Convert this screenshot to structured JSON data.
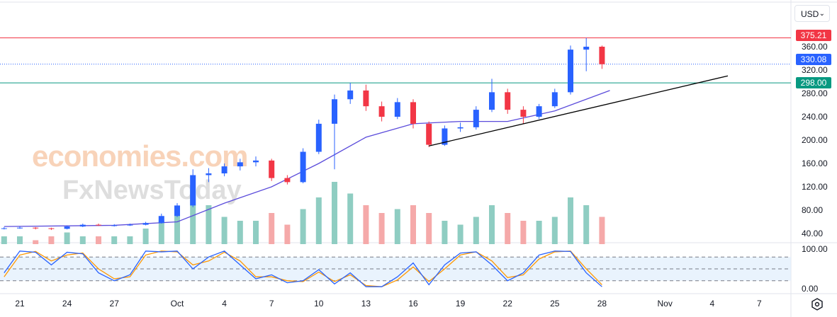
{
  "currency_selector": "USD",
  "watermark": {
    "line1": "economies.com",
    "line2": "FxNewsToday"
  },
  "chart_data": {
    "type": "candlestick",
    "price_axis": {
      "ticks": [
        360,
        320,
        280,
        240,
        200,
        160,
        120,
        80,
        40
      ],
      "tick_labels": [
        "360.00",
        "320.00",
        "280.00",
        "240.00",
        "200.00",
        "160.00",
        "120.00",
        "80.00",
        "40.00"
      ],
      "range": [
        30,
        385
      ]
    },
    "x_axis": {
      "tick_labels": [
        "21",
        "24",
        "27",
        "Oct",
        "4",
        "7",
        "10",
        "13",
        "16",
        "19",
        "22",
        "25",
        "28",
        "Nov",
        "4",
        "7"
      ],
      "tick_days": [
        -10,
        -7,
        -4,
        0,
        3,
        6,
        9,
        12,
        15,
        18,
        21,
        24,
        27,
        31,
        34,
        37
      ]
    },
    "candles": [
      [
        "Sep 20",
        48,
        51,
        47,
        49
      ],
      [
        "Sep 21",
        49,
        52,
        48,
        50
      ],
      [
        "Sep 22",
        50,
        51,
        47,
        49
      ],
      [
        "Sep 23",
        49,
        50,
        46,
        48
      ],
      [
        "Sep 24",
        48,
        54,
        47,
        52
      ],
      [
        "Sep 25",
        52,
        57,
        51,
        55
      ],
      [
        "Sep 26",
        55,
        57,
        53,
        54
      ],
      [
        "Sep 27",
        54,
        56,
        52,
        54
      ],
      [
        "Sep 28",
        54,
        57,
        53,
        55
      ],
      [
        "Sep 29",
        55,
        60,
        54,
        58
      ],
      [
        "Sep 30",
        58,
        74,
        57,
        70
      ],
      [
        "Oct 1",
        70,
        92,
        68,
        88
      ],
      [
        "Oct 2",
        88,
        150,
        85,
        140
      ],
      [
        "Oct 3",
        140,
        152,
        128,
        143
      ],
      [
        "Oct 4",
        143,
        160,
        138,
        155
      ],
      [
        "Oct 5",
        155,
        168,
        148,
        162
      ],
      [
        "Oct 6",
        162,
        172,
        155,
        165
      ],
      [
        "Oct 7",
        165,
        168,
        130,
        135
      ],
      [
        "Oct 8",
        135,
        140,
        124,
        128
      ],
      [
        "Oct 9",
        128,
        186,
        126,
        180
      ],
      [
        "Oct 10",
        180,
        235,
        176,
        228
      ],
      [
        "Oct 11",
        228,
        278,
        150,
        270
      ],
      [
        "Oct 12",
        270,
        298,
        262,
        285
      ],
      [
        "Oct 13",
        285,
        295,
        250,
        258
      ],
      [
        "Oct 14",
        258,
        266,
        232,
        240
      ],
      [
        "Oct 15",
        240,
        272,
        236,
        265
      ],
      [
        "Oct 16",
        265,
        270,
        220,
        228
      ],
      [
        "Oct 17",
        228,
        232,
        188,
        192
      ],
      [
        "Oct 18",
        192,
        225,
        190,
        220
      ],
      [
        "Oct 19",
        220,
        230,
        214,
        222
      ],
      [
        "Oct 20",
        222,
        258,
        218,
        252
      ],
      [
        "Oct 21",
        252,
        305,
        248,
        282
      ],
      [
        "Oct 22",
        282,
        288,
        245,
        252
      ],
      [
        "Oct 23",
        252,
        258,
        228,
        240
      ],
      [
        "Oct 24",
        240,
        262,
        236,
        258
      ],
      [
        "Oct 25",
        258,
        288,
        255,
        282
      ],
      [
        "Oct 26",
        282,
        362,
        278,
        355
      ],
      [
        "Oct 27",
        355,
        375,
        318,
        360
      ],
      [
        "Oct 28",
        360,
        362,
        322,
        330
      ]
    ],
    "moving_average": [
      [
        -11,
        52
      ],
      [
        -4,
        54
      ],
      [
        0,
        60
      ],
      [
        3,
        92
      ],
      [
        6,
        120
      ],
      [
        9,
        160
      ],
      [
        12,
        205
      ],
      [
        15,
        228
      ],
      [
        18,
        232
      ],
      [
        21,
        232
      ],
      [
        24,
        250
      ],
      [
        26,
        270
      ],
      [
        27.5,
        285
      ]
    ],
    "volume": [
      2,
      2,
      1,
      2,
      3,
      2,
      2,
      2,
      2,
      4,
      6,
      9,
      14,
      10,
      7,
      6,
      6,
      8,
      5,
      9,
      12,
      16,
      13,
      10,
      8,
      9,
      10,
      8,
      6,
      5,
      7,
      10,
      8,
      6,
      6,
      7,
      12,
      10,
      7
    ],
    "horizontal_lines": [
      {
        "price": 375.21,
        "label": "375.21",
        "color": "#f23645",
        "style": "solid"
      },
      {
        "price": 330.08,
        "label": "330.08",
        "color": "#2962ff",
        "style": "dotted"
      },
      {
        "price": 298.0,
        "label": "298.00",
        "color": "#089981",
        "style": "solid"
      }
    ],
    "trendline": {
      "start": [
        "Oct 17",
        190
      ],
      "end": [
        "Nov 5",
        310
      ],
      "color": "#000000"
    },
    "stochastic": {
      "axis_labels": [
        "100.00",
        "0.00"
      ],
      "levels": [
        80,
        50,
        20
      ],
      "k": [
        40,
        95,
        92,
        60,
        92,
        88,
        40,
        20,
        35,
        95,
        93,
        95,
        50,
        80,
        95,
        60,
        25,
        35,
        15,
        20,
        48,
        12,
        40,
        5,
        5,
        30,
        65,
        10,
        60,
        90,
        93,
        60,
        20,
        40,
        85,
        95,
        94,
        40,
        5
      ],
      "d": [
        30,
        85,
        94,
        70,
        85,
        90,
        50,
        25,
        30,
        85,
        95,
        93,
        60,
        70,
        92,
        70,
        30,
        30,
        20,
        18,
        42,
        18,
        35,
        8,
        5,
        22,
        55,
        18,
        50,
        85,
        93,
        70,
        28,
        35,
        75,
        93,
        95,
        50,
        10
      ]
    },
    "colors": {
      "up": "#2962ff",
      "down": "#f23645",
      "ma": "#5b4cdb",
      "vol_up": "#8fcdc2",
      "vol_down": "#f5a9a9",
      "stoch_k": "#2962ff",
      "stoch_d": "#ff9800"
    }
  }
}
